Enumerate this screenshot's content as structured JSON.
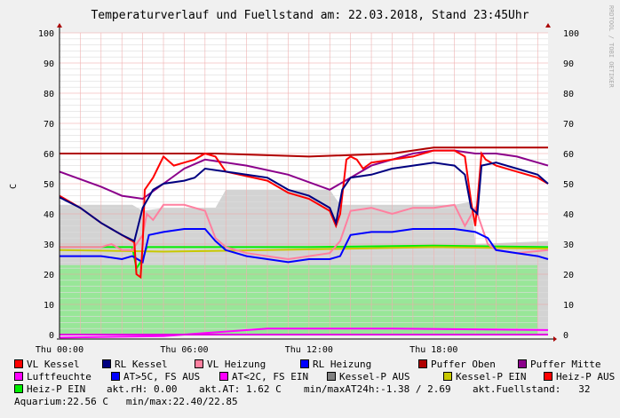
{
  "chart_data": {
    "type": "line",
    "title": "Temperaturverlauf und Fuellstand am: 22.03.2018, Stand 23:45Uhr",
    "ylabel": "C",
    "side_label": "RRDTOOL / TOBI OETIKER",
    "ylim": [
      0,
      100
    ],
    "yticks": [
      0,
      10,
      20,
      30,
      40,
      50,
      60,
      70,
      80,
      90,
      100
    ],
    "xlim": [
      0,
      23.5
    ],
    "xticks": [
      {
        "h": 0,
        "label": "Thu 00:00"
      },
      {
        "h": 6,
        "label": "Thu 06:00"
      },
      {
        "h": 12,
        "label": "Thu 12:00"
      },
      {
        "h": 18,
        "label": "Thu 18:00"
      }
    ],
    "grid": true,
    "areas": [
      {
        "name": "Kessel-P AUS",
        "color": "#d3d3d3",
        "points": [
          [
            0,
            43
          ],
          [
            3.5,
            43
          ],
          [
            4,
            41
          ],
          [
            5,
            42
          ],
          [
            7.5,
            42
          ],
          [
            8,
            48
          ],
          [
            13,
            48
          ],
          [
            13.5,
            43
          ],
          [
            19,
            43
          ],
          [
            19.8,
            44
          ],
          [
            20,
            30
          ],
          [
            23.5,
            31
          ]
        ]
      },
      {
        "name": "Heiz-P EIN",
        "color": "#98e698",
        "points": [
          [
            0,
            23
          ],
          [
            23,
            23
          ]
        ]
      }
    ],
    "series": [
      {
        "name": "Puffer Oben",
        "color": "#b00000",
        "points": [
          [
            0,
            60
          ],
          [
            7.5,
            60
          ],
          [
            12,
            59
          ],
          [
            16,
            60
          ],
          [
            18,
            62
          ],
          [
            23.5,
            62
          ]
        ]
      },
      {
        "name": "Puffer Mitte",
        "color": "#8b008b",
        "points": [
          [
            0,
            54
          ],
          [
            2,
            49
          ],
          [
            3,
            46
          ],
          [
            4,
            45
          ],
          [
            5,
            50
          ],
          [
            6,
            55
          ],
          [
            7,
            58
          ],
          [
            9,
            56
          ],
          [
            11,
            53
          ],
          [
            13,
            48
          ],
          [
            14,
            52
          ],
          [
            15,
            56
          ],
          [
            16,
            58
          ],
          [
            17,
            60
          ],
          [
            18,
            61
          ],
          [
            19,
            61
          ],
          [
            20,
            60
          ],
          [
            21,
            60
          ],
          [
            22,
            59
          ],
          [
            23.5,
            56
          ]
        ]
      },
      {
        "name": "Heiz-P EIN",
        "color": "#00ee00",
        "points": [
          [
            0,
            29
          ],
          [
            3.5,
            29
          ],
          [
            3.7,
            22
          ],
          [
            4,
            25
          ],
          [
            4.2,
            29
          ],
          [
            12,
            29
          ],
          [
            18,
            29.5
          ],
          [
            23.5,
            29
          ]
        ]
      },
      {
        "name": "Kessel-P EIN",
        "color": "#c8c800",
        "points": [
          [
            0,
            28
          ],
          [
            5,
            27.5
          ],
          [
            10,
            28
          ],
          [
            18,
            29
          ],
          [
            23.5,
            28.5
          ]
        ]
      },
      {
        "name": "VL Heizung",
        "color": "#ff80a0",
        "points": [
          [
            0,
            29
          ],
          [
            2,
            29
          ],
          [
            2.5,
            30
          ],
          [
            3,
            28
          ],
          [
            3.5,
            28
          ],
          [
            4,
            33
          ],
          [
            4.2,
            40
          ],
          [
            4.5,
            38
          ],
          [
            5,
            43
          ],
          [
            6,
            43
          ],
          [
            7,
            41
          ],
          [
            7.5,
            32
          ],
          [
            8,
            29
          ],
          [
            9,
            27
          ],
          [
            10,
            26
          ],
          [
            11,
            25
          ],
          [
            12,
            26
          ],
          [
            13,
            27
          ],
          [
            13.5,
            31
          ],
          [
            14,
            41
          ],
          [
            15,
            42
          ],
          [
            16,
            40
          ],
          [
            17,
            42
          ],
          [
            18,
            42
          ],
          [
            19,
            43
          ],
          [
            19.5,
            36
          ],
          [
            20,
            42
          ],
          [
            20.3,
            36
          ],
          [
            20.6,
            30
          ],
          [
            21,
            28
          ],
          [
            22,
            27
          ],
          [
            23.5,
            28
          ]
        ]
      },
      {
        "name": "RL Heizung",
        "color": "#0000ff",
        "points": [
          [
            0,
            26
          ],
          [
            2,
            26
          ],
          [
            3,
            25
          ],
          [
            3.5,
            26
          ],
          [
            4,
            24
          ],
          [
            4.3,
            33
          ],
          [
            5,
            34
          ],
          [
            6,
            35
          ],
          [
            7,
            35
          ],
          [
            7.5,
            31
          ],
          [
            8,
            28
          ],
          [
            9,
            26
          ],
          [
            10,
            25
          ],
          [
            11,
            24
          ],
          [
            12,
            25
          ],
          [
            13,
            25
          ],
          [
            13.5,
            26
          ],
          [
            14,
            33
          ],
          [
            15,
            34
          ],
          [
            16,
            34
          ],
          [
            17,
            35
          ],
          [
            18,
            35
          ],
          [
            19,
            35
          ],
          [
            20,
            34
          ],
          [
            20.6,
            32
          ],
          [
            21,
            28
          ],
          [
            22,
            27
          ],
          [
            23,
            26
          ],
          [
            23.5,
            25
          ]
        ]
      },
      {
        "name": "VL Kessel",
        "color": "#ff0000",
        "points": [
          [
            0,
            46
          ],
          [
            1,
            42
          ],
          [
            2,
            37
          ],
          [
            3,
            33
          ],
          [
            3.5,
            31
          ],
          [
            3.6,
            30.5
          ],
          [
            3.7,
            20
          ],
          [
            3.9,
            19
          ],
          [
            4,
            30
          ],
          [
            4.1,
            48
          ],
          [
            4.5,
            52
          ],
          [
            5,
            59
          ],
          [
            5.5,
            56
          ],
          [
            6,
            57
          ],
          [
            6.5,
            58
          ],
          [
            7,
            60
          ],
          [
            7.5,
            59
          ],
          [
            8,
            54
          ],
          [
            10,
            51
          ],
          [
            11,
            47
          ],
          [
            12,
            45
          ],
          [
            13,
            41
          ],
          [
            13.3,
            36
          ],
          [
            13.5,
            40
          ],
          [
            13.8,
            58
          ],
          [
            14,
            59
          ],
          [
            14.3,
            58
          ],
          [
            14.6,
            55
          ],
          [
            15,
            57
          ],
          [
            16,
            58
          ],
          [
            17,
            59
          ],
          [
            18,
            61
          ],
          [
            19,
            61
          ],
          [
            19.5,
            59
          ],
          [
            19.8,
            44
          ],
          [
            20,
            36
          ],
          [
            20.3,
            60
          ],
          [
            20.5,
            58
          ],
          [
            21,
            56
          ],
          [
            22,
            54
          ],
          [
            23,
            52
          ],
          [
            23.5,
            50
          ]
        ]
      },
      {
        "name": "RL Kessel",
        "color": "#000080",
        "points": [
          [
            0,
            45.5
          ],
          [
            1,
            42
          ],
          [
            2,
            37
          ],
          [
            3,
            33
          ],
          [
            3.6,
            31
          ],
          [
            4,
            42
          ],
          [
            4.5,
            48
          ],
          [
            5,
            50
          ],
          [
            6,
            51
          ],
          [
            6.5,
            52
          ],
          [
            7,
            55
          ],
          [
            8,
            54
          ],
          [
            10,
            52
          ],
          [
            11,
            48
          ],
          [
            12,
            46
          ],
          [
            13,
            42
          ],
          [
            13.3,
            37
          ],
          [
            13.6,
            48
          ],
          [
            14,
            52
          ],
          [
            15,
            53
          ],
          [
            16,
            55
          ],
          [
            17,
            56
          ],
          [
            18,
            57
          ],
          [
            19,
            56
          ],
          [
            19.5,
            53
          ],
          [
            19.8,
            42
          ],
          [
            20.1,
            40
          ],
          [
            20.3,
            56
          ],
          [
            21,
            57
          ],
          [
            22,
            55
          ],
          [
            23,
            53
          ],
          [
            23.5,
            50
          ]
        ]
      },
      {
        "name": "Luftfeuchte",
        "color": "#ff00ff",
        "points": [
          [
            0,
            -1
          ],
          [
            5,
            -0.5
          ],
          [
            7,
            0.5
          ],
          [
            8,
            1
          ],
          [
            10,
            2
          ],
          [
            12,
            2
          ],
          [
            16,
            2
          ],
          [
            23.5,
            1.5
          ]
        ]
      },
      {
        "name": "AT<2C, FS EIN",
        "color": "#e000e0",
        "points": [
          [
            0,
            0
          ],
          [
            23.5,
            0
          ]
        ]
      }
    ]
  },
  "legend": {
    "items": [
      {
        "label": "VL Kessel",
        "color": "#ff0000"
      },
      {
        "label": "RL Kessel",
        "color": "#000080"
      },
      {
        "label": "VL Heizung",
        "color": "#ff80a0"
      },
      {
        "label": "RL Heizung",
        "color": "#0000ff"
      },
      {
        "label": "Puffer Oben",
        "color": "#b00000"
      },
      {
        "label": "Puffer Mitte",
        "color": "#8b008b"
      },
      {
        "label": "Luftfeuchte",
        "color": "#ff00ff"
      },
      {
        "label": "AT>5C, FS AUS",
        "color": "#0000ff"
      },
      {
        "label": "AT<2C, FS EIN",
        "color": "#ff00ff"
      },
      {
        "label": "Kessel-P AUS",
        "color": "#808080"
      },
      {
        "label": "Kessel-P EIN",
        "color": "#c8c800"
      },
      {
        "label": "Heiz-P AUS",
        "color": "#ff0000"
      },
      {
        "label": "Heiz-P EIN",
        "color": "#00ee00"
      }
    ],
    "stats": [
      "akt.rH: 0.00",
      "akt.AT: 1.62 C",
      "min/maxAT24h:-1.38 / 2.69",
      "akt.Fuellstand:   32"
    ],
    "aquarium": "Aquarium:22.56 C   min/max:22.40/22.85"
  }
}
